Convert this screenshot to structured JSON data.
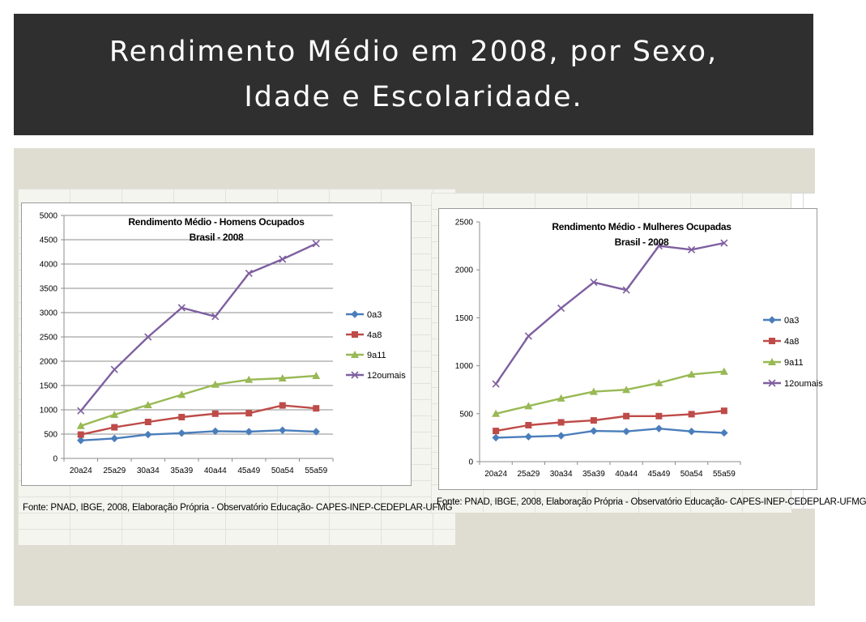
{
  "slide": {
    "title_line1": "Rendimento Médio em 2008, por Sexo,",
    "title_line2": "Idade e Escolaridade."
  },
  "colors": {
    "title_bar_bg": "#2f2f2f",
    "content_bg": "#dfdcd2",
    "series": [
      "#4a7ebb",
      "#be4b48",
      "#98b954",
      "#7e5fa0"
    ]
  },
  "chart_data": [
    {
      "type": "line",
      "title_line1": "Rendimento Médio - Homens Ocupados",
      "title_line2": "Brasil - 2008",
      "categories": [
        "20a24",
        "25a29",
        "30a34",
        "35a39",
        "40a44",
        "45a49",
        "50a54",
        "55a59"
      ],
      "y_ticks": [
        "0",
        "500",
        "1000",
        "1500",
        "2000",
        "2500",
        "3000",
        "3500",
        "4000",
        "4500",
        "5000"
      ],
      "ylim": [
        0,
        5000
      ],
      "grid": true,
      "legend_position": "right",
      "series": [
        {
          "name": "0a3",
          "marker": "diamond",
          "values": [
            370,
            410,
            490,
            520,
            560,
            550,
            580,
            550
          ]
        },
        {
          "name": "4a8",
          "marker": "square",
          "values": [
            490,
            640,
            750,
            850,
            920,
            930,
            1090,
            1030
          ]
        },
        {
          "name": "9a11",
          "marker": "triangle",
          "values": [
            670,
            900,
            1100,
            1310,
            1520,
            1620,
            1650,
            1700
          ]
        },
        {
          "name": "12oumais",
          "marker": "x",
          "values": [
            980,
            1830,
            2500,
            3100,
            2920,
            3810,
            4100,
            4420
          ]
        }
      ],
      "source": "Fonte: PNAD, IBGE, 2008, Elaboração Própria - Observatório Educação- CAPES-INEP-CEDEPLAR-UFMG"
    },
    {
      "type": "line",
      "title_line1": "Rendimento Médio - Mulheres Ocupadas",
      "title_line2": "Brasil - 2008",
      "categories": [
        "20a24",
        "25a29",
        "30a34",
        "35a39",
        "40a44",
        "45a49",
        "50a54",
        "55a59"
      ],
      "y_ticks": [
        "0",
        "500",
        "1000",
        "1500",
        "2000",
        "2500"
      ],
      "ylim": [
        0,
        2500
      ],
      "grid": false,
      "legend_position": "right",
      "series": [
        {
          "name": "0a3",
          "marker": "diamond",
          "values": [
            250,
            260,
            270,
            320,
            315,
            345,
            315,
            300
          ]
        },
        {
          "name": "4a8",
          "marker": "square",
          "values": [
            320,
            380,
            410,
            430,
            475,
            475,
            495,
            530
          ]
        },
        {
          "name": "9a11",
          "marker": "triangle",
          "values": [
            500,
            580,
            660,
            730,
            750,
            820,
            910,
            940
          ]
        },
        {
          "name": "12oumais",
          "marker": "x",
          "values": [
            810,
            1310,
            1600,
            1870,
            1790,
            2250,
            2210,
            2280
          ]
        }
      ],
      "source": "Fonte: PNAD, IBGE, 2008, Elaboração Própria - Observatório Educação- CAPES-INEP-CEDEPLAR-UFMG"
    }
  ]
}
